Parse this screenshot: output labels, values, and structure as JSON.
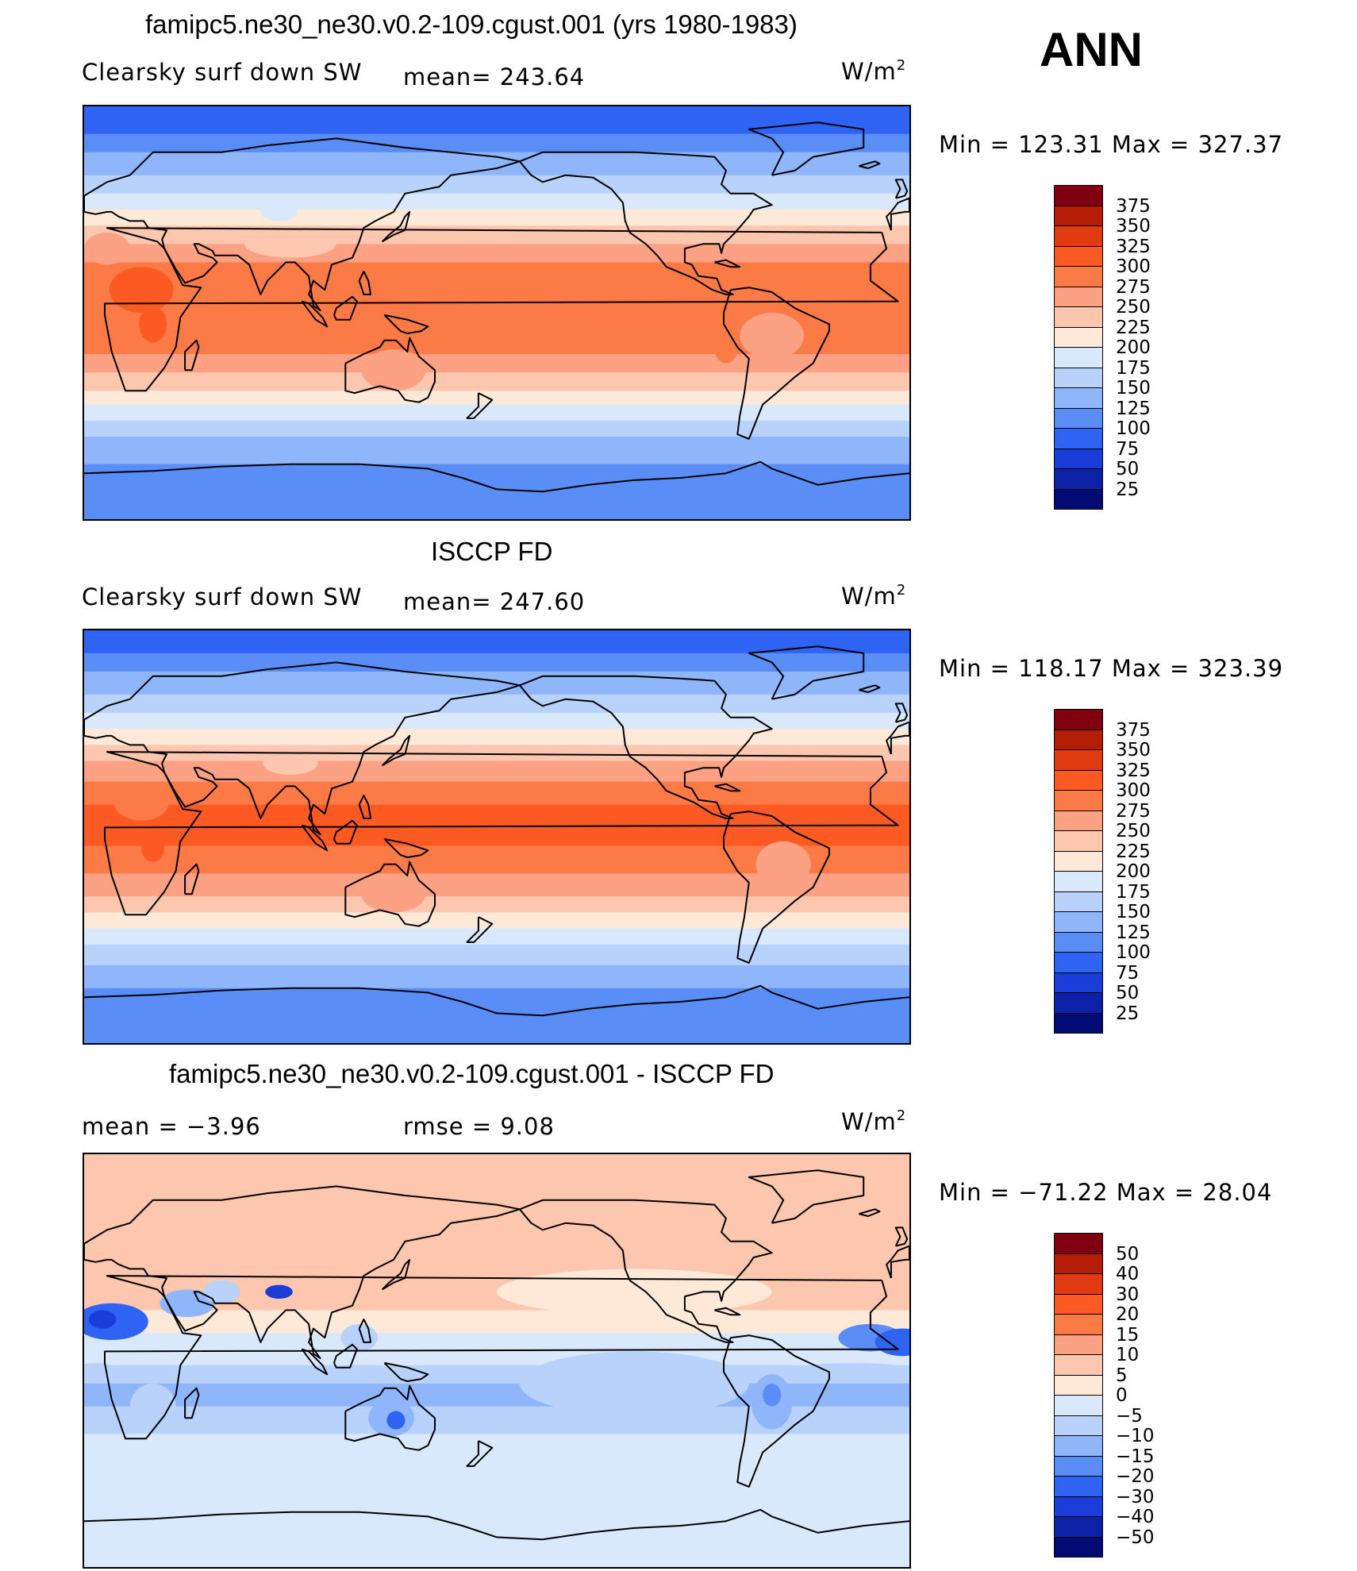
{
  "season": "ANN",
  "units_base": "W/m",
  "units_sup": "2",
  "panels": [
    {
      "title": "famipc5.ne30_ne30.v0.2-109.cgust.001 (yrs 1980-1983)",
      "left_text": "Clearsky surf down SW",
      "mid_text": "mean= 243.64",
      "minmax": "Min = 123.31 Max = 327.37",
      "levels": [
        "375",
        "350",
        "325",
        "300",
        "275",
        "250",
        "225",
        "200",
        "175",
        "150",
        "125",
        "100",
        "75",
        "50",
        "25"
      ],
      "field": "model"
    },
    {
      "title": "ISCCP FD",
      "left_text": "Clearsky surf down SW",
      "mid_text": "mean= 247.60",
      "minmax": "Min = 118.17 Max = 323.39",
      "levels": [
        "375",
        "350",
        "325",
        "300",
        "275",
        "250",
        "225",
        "200",
        "175",
        "150",
        "125",
        "100",
        "75",
        "50",
        "25"
      ],
      "field": "obs"
    },
    {
      "title": "famipc5.ne30_ne30.v0.2-109.cgust.001 - ISCCP FD",
      "left_text": "mean =  −3.96",
      "mid_text": "rmse =   9.08",
      "minmax": "Min = −71.22 Max =  28.04",
      "levels": [
        "50",
        "40",
        "30",
        "20",
        "15",
        "10",
        "5",
        "0",
        "−5",
        "−10",
        "−15",
        "−20",
        "−30",
        "−40",
        "−50"
      ],
      "field": "diff"
    }
  ],
  "colors": {
    "scale": [
      "#80000f",
      "#b51c05",
      "#e03b0e",
      "#fb5a22",
      "#fc7a46",
      "#fca183",
      "#fdc6ae",
      "#fee9d8",
      "#d9e8fb",
      "#b8d2fc",
      "#8fb5fb",
      "#5b8df7",
      "#2f63f3",
      "#1a3cd8",
      "#0d21a8",
      "#000c74"
    ],
    "land_outline": "#000000"
  }
}
